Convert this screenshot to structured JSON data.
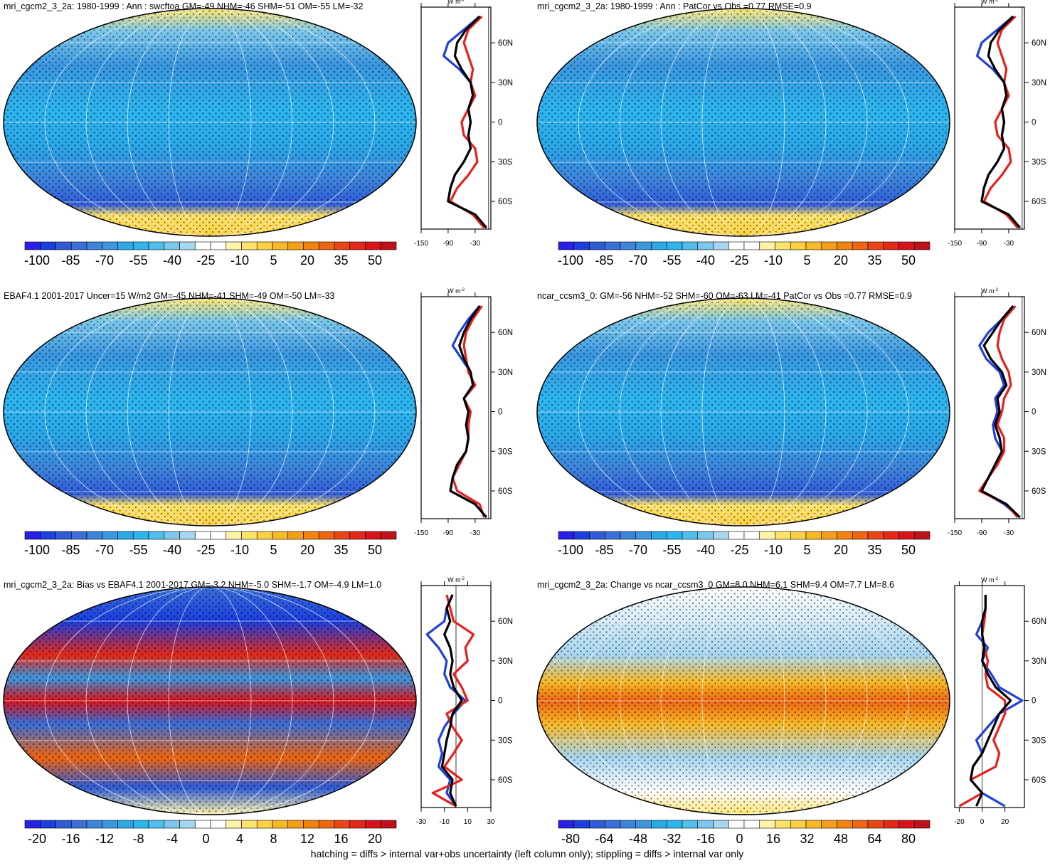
{
  "colorbar_colors": [
    "#2a1fe6",
    "#1a3ee0",
    "#2f5bd8",
    "#3a6fd9",
    "#3e84dc",
    "#3a97e0",
    "#2aa8e8",
    "#2cb6f0",
    "#4fc0ee",
    "#7cc8ec",
    "#a7d6ef",
    "#ffffff",
    "#ffffff",
    "#fff3a8",
    "#fde36a",
    "#fbd043",
    "#f8b928",
    "#f59f17",
    "#f3830f",
    "#ef6510",
    "#ea4514",
    "#e42818",
    "#d8141a",
    "#c0101a"
  ],
  "footer": "hatching = diffs > internal var+obs uncertainty (left column only); stippling = diffs > internal var only",
  "panels": [
    {
      "title": "mri_cgcm2_3_2a: 1980-1999 : Ann : swcftoa GM=-49 NHM=-46 SHM=-51 OM=-55 LM=-32",
      "colorbar": {
        "ticks": [
          -100,
          -85,
          -70,
          -55,
          -40,
          -25,
          -10,
          5,
          20,
          35,
          50
        ]
      },
      "zonal": {
        "type": "line",
        "unit": "W m",
        "unit_exponent": "-2",
        "xlim": [
          -150,
          5
        ],
        "xticks": [
          -150,
          -90,
          -30
        ],
        "ylim": [
          -81,
          87
        ],
        "yticks": [
          {
            "value": 60,
            "label": "60N"
          },
          {
            "value": 30,
            "label": "30N"
          },
          0,
          {
            "value": -30,
            "label": "30S"
          },
          {
            "value": -60,
            "label": "60S"
          }
        ],
        "lat": [
          -80,
          -70,
          -60,
          -50,
          -40,
          -30,
          -20,
          -10,
          0,
          10,
          20,
          30,
          40,
          50,
          60,
          70,
          80
        ],
        "series": [
          {
            "color": "#1f3fe0",
            "values": [
              -5,
              -30,
              -90,
              -85,
              -75,
              -55,
              -40,
              -45,
              -40,
              -45,
              -35,
              -40,
              -65,
              -100,
              -90,
              -55,
              -20
            ]
          },
          {
            "color": "#e8201c",
            "values": [
              -10,
              -35,
              -85,
              -70,
              -45,
              -25,
              -30,
              -55,
              -60,
              -45,
              -30,
              -40,
              -35,
              -45,
              -55,
              -45,
              -15
            ]
          },
          {
            "color": "#000000",
            "values": [
              -5,
              -30,
              -90,
              -85,
              -75,
              -55,
              -40,
              -45,
              -40,
              -45,
              -35,
              -40,
              -60,
              -75,
              -70,
              -50,
              -20
            ]
          }
        ]
      }
    },
    {
      "title": "mri_cgcm2_3_2a: 1980-1999 : Ann : PatCor vs Obs =0.77 RMSE=0.9",
      "colorbar": {
        "ticks": [
          -100,
          -85,
          -70,
          -55,
          -40,
          -25,
          -10,
          5,
          20,
          35,
          50
        ]
      },
      "zonal": {
        "type": "line",
        "unit": "W m",
        "unit_exponent": "-2",
        "xlim": [
          -150,
          5
        ],
        "xticks": [
          -150,
          -90,
          -30
        ],
        "ylim": [
          -81,
          87
        ],
        "yticks": [
          {
            "value": 60,
            "label": "60N"
          },
          {
            "value": 30,
            "label": "30N"
          },
          0,
          {
            "value": -30,
            "label": "30S"
          },
          {
            "value": -60,
            "label": "60S"
          }
        ],
        "lat": [
          -80,
          -70,
          -60,
          -50,
          -40,
          -30,
          -20,
          -10,
          0,
          10,
          20,
          30,
          40,
          50,
          60,
          70,
          80
        ],
        "series": [
          {
            "color": "#1f3fe0",
            "values": [
              -5,
              -30,
              -90,
              -85,
              -75,
              -55,
              -40,
              -45,
              -40,
              -45,
              -35,
              -40,
              -65,
              -100,
              -90,
              -55,
              -20
            ]
          },
          {
            "color": "#e8201c",
            "values": [
              -10,
              -35,
              -85,
              -70,
              -45,
              -25,
              -30,
              -55,
              -60,
              -45,
              -30,
              -40,
              -35,
              -45,
              -55,
              -45,
              -15
            ]
          },
          {
            "color": "#000000",
            "values": [
              -5,
              -30,
              -90,
              -85,
              -75,
              -55,
              -40,
              -45,
              -40,
              -45,
              -35,
              -40,
              -60,
              -75,
              -70,
              -50,
              -20
            ]
          }
        ]
      }
    },
    {
      "title": "EBAF4.1 2001-2017 Uncer=15 W/m2 GM=-45 NHM=-41 SHM=-49 OM=-50 LM=-33",
      "colorbar": {
        "ticks": [
          -100,
          -85,
          -70,
          -55,
          -40,
          -25,
          -10,
          5,
          20,
          35,
          50
        ]
      },
      "zonal": {
        "type": "line",
        "unit": "W m",
        "unit_exponent": "-2",
        "xlim": [
          -150,
          5
        ],
        "xticks": [
          -150,
          -90,
          -30
        ],
        "ylim": [
          -81,
          87
        ],
        "yticks": [
          {
            "value": 60,
            "label": "60N"
          },
          {
            "value": 30,
            "label": "30N"
          },
          0,
          {
            "value": -30,
            "label": "30S"
          },
          {
            "value": -60,
            "label": "60S"
          }
        ],
        "lat": [
          -80,
          -70,
          -60,
          -50,
          -40,
          -30,
          -20,
          -10,
          0,
          10,
          20,
          30,
          40,
          50,
          60,
          70,
          80
        ],
        "series": [
          {
            "color": "#1f3fe0",
            "values": [
              -5,
              -30,
              -85,
              -80,
              -70,
              -50,
              -45,
              -50,
              -45,
              -55,
              -35,
              -40,
              -60,
              -80,
              -65,
              -45,
              -20
            ]
          },
          {
            "color": "#e8201c",
            "values": [
              -10,
              -20,
              -70,
              -80,
              -65,
              -50,
              -45,
              -45,
              -40,
              -55,
              -30,
              -45,
              -50,
              -55,
              -50,
              -35,
              -15
            ]
          },
          {
            "color": "#000000",
            "values": [
              -5,
              -30,
              -85,
              -80,
              -70,
              -50,
              -45,
              -50,
              -45,
              -55,
              -35,
              -40,
              -55,
              -65,
              -55,
              -40,
              -20
            ]
          }
        ]
      }
    },
    {
      "title": "ncar_ccsm3_0: GM=-56 NHM=-52 SHM=-60 OM=-63 LM=-41 PatCor vs Obs =0.77 RMSE=0.9",
      "colorbar": {
        "ticks": [
          -100,
          -85,
          -70,
          -55,
          -40,
          -25,
          -10,
          5,
          20,
          35,
          50
        ]
      },
      "zonal": {
        "type": "line",
        "unit": "W m",
        "unit_exponent": "-2",
        "xlim": [
          -150,
          5
        ],
        "xticks": [
          -150,
          -90,
          -30
        ],
        "ylim": [
          -81,
          87
        ],
        "yticks": [
          {
            "value": 60,
            "label": "60N"
          },
          {
            "value": 30,
            "label": "30N"
          },
          0,
          {
            "value": -30,
            "label": "30S"
          },
          {
            "value": -60,
            "label": "60S"
          }
        ],
        "lat": [
          -80,
          -70,
          -60,
          -50,
          -40,
          -30,
          -20,
          -10,
          0,
          10,
          20,
          30,
          40,
          50,
          60,
          70,
          80
        ],
        "series": [
          {
            "color": "#1f3fe0",
            "values": [
              -5,
              -40,
              -90,
              -75,
              -60,
              -45,
              -60,
              -65,
              -55,
              -60,
              -40,
              -50,
              -80,
              -95,
              -75,
              -45,
              -20
            ]
          },
          {
            "color": "#e8201c",
            "values": [
              -10,
              -35,
              -95,
              -75,
              -55,
              -40,
              -40,
              -55,
              -45,
              -40,
              -25,
              -30,
              -45,
              -55,
              -50,
              -40,
              -15
            ]
          },
          {
            "color": "#000000",
            "values": [
              -5,
              -35,
              -90,
              -75,
              -60,
              -45,
              -50,
              -60,
              -50,
              -55,
              -35,
              -45,
              -70,
              -85,
              -65,
              -45,
              -20
            ]
          }
        ]
      }
    },
    {
      "title": "mri_cgcm2_3_2a: Bias vs EBAF4.1 2001-2017 GM=-3.2 NHM=-5.0 SHM=-1.7 OM=-4.9 LM=1.0",
      "colorbar": {
        "ticks": [
          -20,
          -16,
          -12,
          -8,
          -4,
          0,
          4,
          8,
          12,
          16,
          20
        ]
      },
      "zonal": {
        "type": "line",
        "unit": "W m",
        "unit_exponent": "-2",
        "xlim": [
          -30,
          30
        ],
        "xticks": [
          -30,
          -10,
          10,
          30
        ],
        "ylim": [
          -81,
          87
        ],
        "yticks": [
          {
            "value": 60,
            "label": "60N"
          },
          {
            "value": 30,
            "label": "30N"
          },
          0,
          {
            "value": -30,
            "label": "30S"
          },
          {
            "value": -60,
            "label": "60S"
          }
        ],
        "lat": [
          -80,
          -70,
          -60,
          -50,
          -40,
          -30,
          -20,
          -10,
          0,
          10,
          20,
          30,
          40,
          50,
          60,
          70,
          80
        ],
        "series": [
          {
            "color": "#1f3fe0",
            "values": [
              0,
              -8,
              -5,
              -15,
              -12,
              -15,
              -10,
              -2,
              8,
              -5,
              -10,
              -8,
              -15,
              -25,
              -10,
              -8,
              -3
            ]
          },
          {
            "color": "#e8201c",
            "values": [
              0,
              -20,
              5,
              -10,
              -2,
              5,
              -3,
              -8,
              10,
              5,
              -2,
              10,
              8,
              15,
              -2,
              -5,
              -8
            ]
          },
          {
            "color": "#000000",
            "values": [
              0,
              -5,
              -3,
              -12,
              -10,
              -8,
              -5,
              -3,
              5,
              -2,
              -5,
              -3,
              -5,
              -10,
              -5,
              -8,
              -3
            ]
          }
        ]
      }
    },
    {
      "title": "mri_cgcm2_3_2a: Change vs ncar_ccsm3_0 GM=8.0 NHM=6.1 SHM=9.4 OM=7.7 LM=8.6",
      "colorbar": {
        "ticks": [
          -80,
          -64,
          -48,
          -32,
          -16,
          0,
          16,
          32,
          48,
          64,
          80
        ]
      },
      "zonal": {
        "type": "line",
        "unit": "W m",
        "unit_exponent": "-2",
        "xlim": [
          -24,
          37
        ],
        "xticks": [
          -20,
          0,
          20
        ],
        "ylim": [
          -81,
          87
        ],
        "yticks": [
          {
            "value": 60,
            "label": "60N"
          },
          {
            "value": 30,
            "label": "30N"
          },
          0,
          {
            "value": -30,
            "label": "30S"
          },
          {
            "value": -60,
            "label": "60S"
          }
        ],
        "lat": [
          -80,
          -70,
          -60,
          -50,
          -40,
          -30,
          -20,
          -10,
          0,
          10,
          20,
          30,
          40,
          50,
          60,
          70,
          80
        ],
        "series": [
          {
            "color": "#1f3fe0",
            "values": [
              20,
              0,
              -10,
              -8,
              0,
              -5,
              5,
              15,
              35,
              15,
              8,
              0,
              5,
              -5,
              0,
              3,
              3
            ]
          },
          {
            "color": "#e8201c",
            "values": [
              -20,
              0,
              -10,
              12,
              15,
              10,
              15,
              20,
              20,
              5,
              3,
              5,
              2,
              0,
              2,
              3,
              3
            ]
          },
          {
            "color": "#000000",
            "values": [
              -5,
              0,
              -10,
              -8,
              0,
              5,
              10,
              15,
              25,
              12,
              5,
              0,
              2,
              0,
              0,
              3,
              3
            ]
          }
        ]
      }
    }
  ]
}
